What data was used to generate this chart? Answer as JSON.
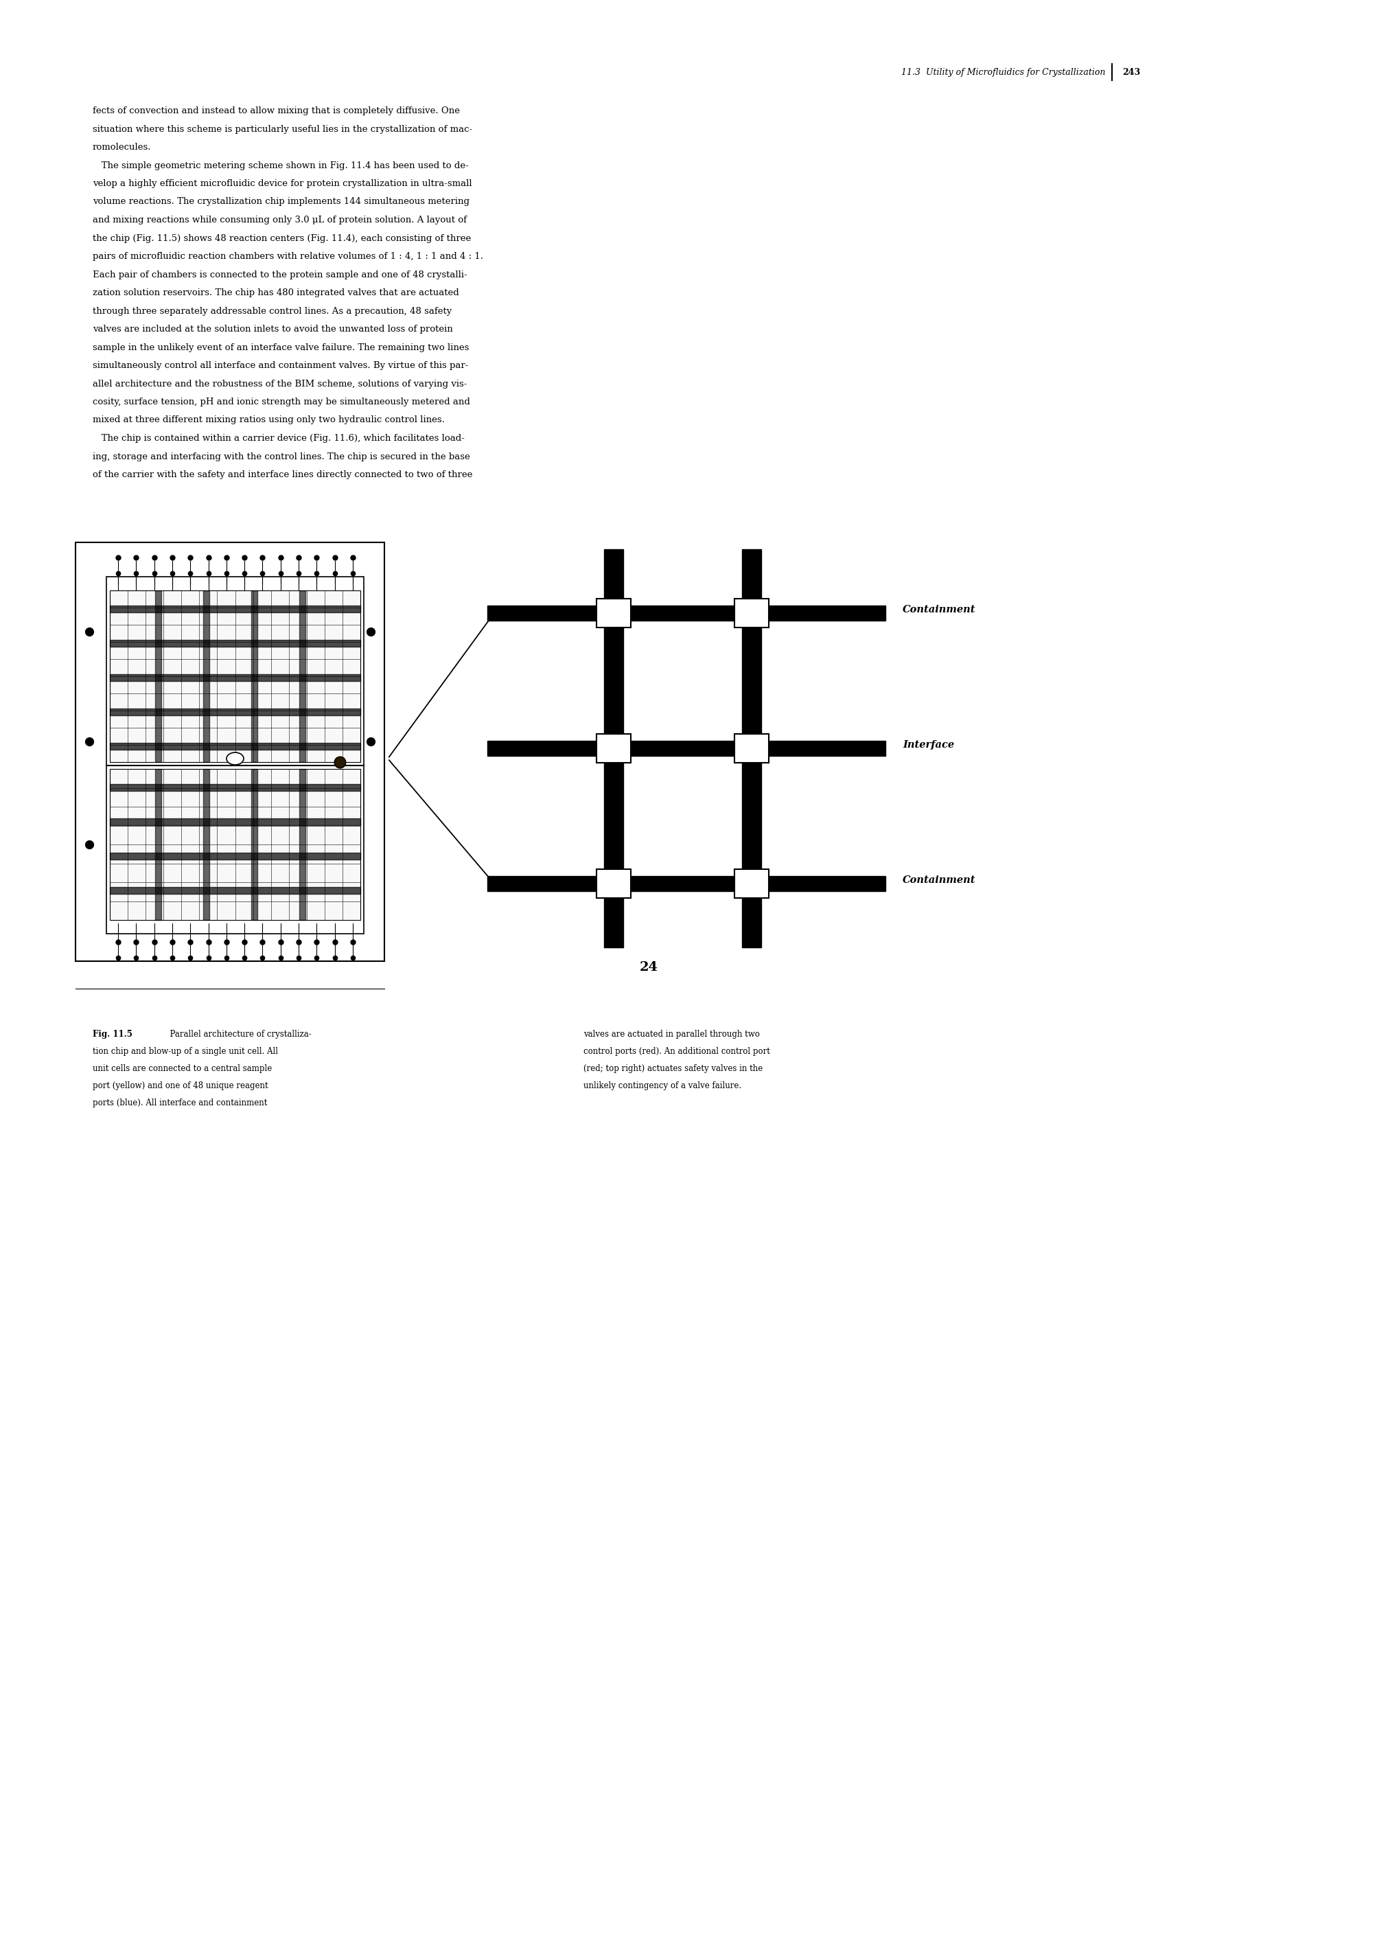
{
  "page_width": 20.09,
  "page_height": 28.33,
  "bg_color": "#ffffff",
  "header_text": "11.3  Utility of Microfluidics for Crystallization",
  "header_page": "243",
  "body_text_lines": [
    "fects of convection and instead to allow mixing that is completely diffusive. One",
    "situation where this scheme is particularly useful lies in the crystallization of mac-",
    "romolecules.",
    "   The simple geometric metering scheme shown in Fig. 11.4 has been used to de-",
    "velop a highly efficient microfluidic device for protein crystallization in ultra-small",
    "volume reactions. The crystallization chip implements 144 simultaneous metering",
    "and mixing reactions while consuming only 3.0 μL of protein solution. A layout of",
    "the chip (Fig. 11.5) shows 48 reaction centers (Fig. 11.4), each consisting of three",
    "pairs of microfluidic reaction chambers with relative volumes of 1 : 4, 1 : 1 and 4 : 1.",
    "Each pair of chambers is connected to the protein sample and one of 48 crystalli-",
    "zation solution reservoirs. The chip has 480 integrated valves that are actuated",
    "through three separately addressable control lines. As a precaution, 48 safety",
    "valves are included at the solution inlets to avoid the unwanted loss of protein",
    "sample in the unlikely event of an interface valve failure. The remaining two lines",
    "simultaneously control all interface and containment valves. By virtue of this par-",
    "allel architecture and the robustness of the BIM scheme, solutions of varying vis-",
    "cosity, surface tension, pH and ionic strength may be simultaneously metered and",
    "mixed at three different mixing ratios using only two hydraulic control lines.",
    "   The chip is contained within a carrier device (Fig. 11.6), which facilitates load-",
    "ing, storage and interfacing with the control lines. The chip is secured in the base",
    "of the carrier with the safety and interface lines directly connected to two of three"
  ],
  "caption_left": "Fig. 11.5  Parallel architecture of crystalliza-\ntion chip and blow-up of a single unit cell. All\nunit cells are connected to a central sample\nport (yellow) and one of 48 unique reagent\nports (blue). All interface and containment",
  "caption_right": "valves are actuated in parallel through two\ncontrol ports (red). An additional control port\n(red; top right) actuates safety valves in the\nunlikely contingency of a valve failure.",
  "label_containment_top": "Containment",
  "label_interface": "Interface",
  "label_containment_bot": "Containment",
  "label_24": "24"
}
